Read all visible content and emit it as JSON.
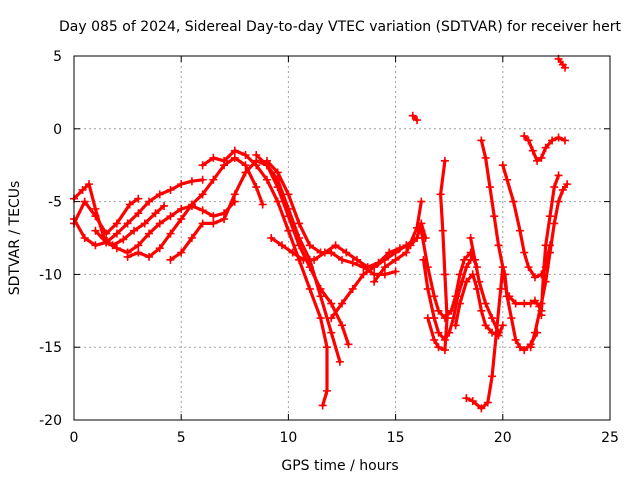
{
  "chart_data": {
    "type": "scatter",
    "title": "Day 085 of 2024, Sidereal Day-to-day VTEC variation (SDTVAR) for receiver hert",
    "xlabel": "GPS time / hours",
    "ylabel": "SDTVAR / TECUs",
    "xlim": [
      0,
      25
    ],
    "ylim": [
      -20,
      5
    ],
    "x_ticks": [
      "0",
      "5",
      "10",
      "15",
      "20",
      "25"
    ],
    "y_ticks": [
      "-20",
      "-15",
      "-10",
      "-5",
      "0",
      "5"
    ],
    "grid": true,
    "legend": "none",
    "marker": "plus",
    "series_color": "#ff0000",
    "series": [
      {
        "points": [
          [
            0,
            -6.5
          ],
          [
            0.5,
            -5.0
          ],
          [
            1.0,
            -6.0
          ],
          [
            1.5,
            -7.2
          ],
          [
            2.0,
            -6.5
          ],
          [
            2.6,
            -5.2
          ],
          [
            3.0,
            -4.8
          ]
        ]
      },
      {
        "points": [
          [
            0,
            -4.8
          ],
          [
            0.4,
            -4.2
          ],
          [
            0.7,
            -3.8
          ],
          [
            1.0,
            -5.5
          ],
          [
            1.4,
            -7.5
          ],
          [
            1.8,
            -8.0
          ],
          [
            2.3,
            -7.6
          ],
          [
            2.8,
            -7.0
          ],
          [
            3.3,
            -6.5
          ],
          [
            3.8,
            -5.8
          ],
          [
            4.2,
            -5.3
          ]
        ]
      },
      {
        "points": [
          [
            0,
            -6.2
          ],
          [
            0.5,
            -7.5
          ],
          [
            1.0,
            -8.0
          ],
          [
            1.5,
            -7.8
          ],
          [
            2.0,
            -7.2
          ],
          [
            2.5,
            -6.5
          ],
          [
            3.0,
            -5.8
          ],
          [
            3.5,
            -5.0
          ],
          [
            4.0,
            -4.5
          ],
          [
            4.5,
            -4.2
          ],
          [
            5.0,
            -3.8
          ],
          [
            5.5,
            -3.6
          ],
          [
            6.0,
            -3.5
          ]
        ]
      },
      {
        "points": [
          [
            1.0,
            -7.0
          ],
          [
            1.5,
            -7.8
          ],
          [
            2.0,
            -8.2
          ],
          [
            2.5,
            -8.5
          ],
          [
            3.0,
            -8.0
          ],
          [
            3.5,
            -7.2
          ],
          [
            4.0,
            -6.5
          ],
          [
            4.5,
            -6.0
          ],
          [
            5.0,
            -5.5
          ],
          [
            5.5,
            -5.3
          ],
          [
            6.0,
            -5.6
          ],
          [
            6.5,
            -6.0
          ],
          [
            7.0,
            -5.8
          ],
          [
            7.5,
            -5.0
          ]
        ]
      },
      {
        "points": [
          [
            2.5,
            -8.8
          ],
          [
            3.0,
            -8.5
          ],
          [
            3.5,
            -8.8
          ],
          [
            4.0,
            -8.2
          ],
          [
            4.5,
            -7.2
          ],
          [
            5.0,
            -6.2
          ],
          [
            5.5,
            -5.2
          ],
          [
            6.0,
            -4.5
          ],
          [
            6.5,
            -3.5
          ],
          [
            7.0,
            -2.5
          ],
          [
            7.5,
            -2.0
          ],
          [
            8.0,
            -2.5
          ],
          [
            8.5,
            -4.0
          ],
          [
            8.8,
            -5.2
          ]
        ]
      },
      {
        "points": [
          [
            4.5,
            -9.0
          ],
          [
            5.0,
            -8.5
          ],
          [
            5.5,
            -7.5
          ],
          [
            6.0,
            -6.5
          ],
          [
            6.5,
            -6.5
          ],
          [
            7.0,
            -6.2
          ],
          [
            7.5,
            -4.5
          ],
          [
            8.0,
            -3.0
          ],
          [
            8.5,
            -2.2
          ],
          [
            9.0,
            -2.5
          ],
          [
            9.5,
            -3.5
          ],
          [
            10.0,
            -5.5
          ],
          [
            10.5,
            -7.5
          ],
          [
            11.0,
            -9.0
          ],
          [
            11.5,
            -11.5
          ],
          [
            12.0,
            -14.0
          ],
          [
            12.4,
            -16.0
          ]
        ]
      },
      {
        "points": [
          [
            6.0,
            -2.5
          ],
          [
            6.5,
            -2.0
          ],
          [
            7.0,
            -2.2
          ],
          [
            7.5,
            -1.5
          ],
          [
            8.0,
            -1.8
          ],
          [
            8.5,
            -2.5
          ],
          [
            9.0,
            -3.5
          ],
          [
            9.5,
            -5.0
          ],
          [
            10.0,
            -7.0
          ],
          [
            10.5,
            -9.0
          ],
          [
            11.0,
            -11.0
          ],
          [
            11.5,
            -13.0
          ],
          [
            11.8,
            -15.0
          ],
          [
            11.8,
            -18.0
          ],
          [
            11.6,
            -19.0
          ]
        ]
      },
      {
        "points": [
          [
            8.5,
            -1.8
          ],
          [
            9.0,
            -2.5
          ],
          [
            9.5,
            -4.0
          ],
          [
            10.0,
            -6.0
          ],
          [
            10.5,
            -8.0
          ],
          [
            11.0,
            -9.5
          ],
          [
            11.5,
            -11.0
          ],
          [
            12.0,
            -12.0
          ],
          [
            12.5,
            -13.5
          ],
          [
            12.8,
            -14.8
          ]
        ]
      },
      {
        "points": [
          [
            9.0,
            -2.2
          ],
          [
            9.5,
            -3.0
          ],
          [
            10.0,
            -4.5
          ],
          [
            10.5,
            -6.5
          ],
          [
            11.0,
            -8.0
          ],
          [
            11.5,
            -8.5
          ],
          [
            12.0,
            -8.5
          ],
          [
            12.5,
            -9.0
          ],
          [
            13.0,
            -9.2
          ],
          [
            13.5,
            -9.5
          ],
          [
            14.0,
            -10.0
          ],
          [
            14.5,
            -10.0
          ],
          [
            15.0,
            -9.8
          ]
        ]
      },
      {
        "points": [
          [
            9.2,
            -7.5
          ],
          [
            9.7,
            -8.0
          ],
          [
            10.2,
            -8.5
          ],
          [
            10.7,
            -9.0
          ],
          [
            11.2,
            -9.0
          ],
          [
            11.7,
            -8.5
          ],
          [
            12.2,
            -8.0
          ],
          [
            12.7,
            -8.5
          ],
          [
            13.2,
            -9.0
          ],
          [
            13.7,
            -9.5
          ],
          [
            14.2,
            -9.2
          ],
          [
            14.7,
            -8.5
          ],
          [
            15.2,
            -8.2
          ],
          [
            15.7,
            -8.0
          ],
          [
            16.0,
            -7.5
          ]
        ]
      },
      {
        "points": [
          [
            12.0,
            -13.0
          ],
          [
            12.5,
            -12.0
          ],
          [
            13.0,
            -11.0
          ],
          [
            13.5,
            -10.0
          ],
          [
            14.0,
            -9.5
          ],
          [
            14.5,
            -9.0
          ],
          [
            15.0,
            -8.5
          ],
          [
            15.5,
            -8.0
          ],
          [
            16.0,
            -7.5
          ],
          [
            16.2,
            -6.5
          ],
          [
            16.4,
            -7.5
          ]
        ]
      },
      {
        "points": [
          [
            14.0,
            -10.5
          ],
          [
            14.5,
            -9.5
          ],
          [
            15.0,
            -9.0
          ],
          [
            15.5,
            -8.5
          ],
          [
            16.0,
            -6.8
          ],
          [
            16.2,
            -5.0
          ]
        ]
      },
      {
        "points": [
          [
            15.8,
            0.9
          ],
          [
            16.0,
            0.6
          ]
        ]
      },
      {
        "points": [
          [
            16.2,
            -7.0
          ],
          [
            16.5,
            -9.5
          ],
          [
            16.8,
            -11.5
          ],
          [
            17.0,
            -12.5
          ],
          [
            17.3,
            -13.0
          ],
          [
            17.6,
            -12.5
          ],
          [
            17.8,
            -11.5
          ],
          [
            18.0,
            -10.0
          ],
          [
            18.2,
            -9.0
          ],
          [
            18.5,
            -8.5
          ],
          [
            18.8,
            -9.5
          ]
        ]
      },
      {
        "points": [
          [
            16.3,
            -9.0
          ],
          [
            16.5,
            -11.0
          ],
          [
            16.8,
            -13.0
          ],
          [
            17.0,
            -14.0
          ],
          [
            17.3,
            -14.5
          ],
          [
            17.5,
            -14.0
          ],
          [
            17.7,
            -13.0
          ],
          [
            17.9,
            -11.5
          ],
          [
            18.1,
            -10.5
          ],
          [
            18.3,
            -9.5
          ],
          [
            18.5,
            -9.0
          ]
        ]
      },
      {
        "points": [
          [
            16.5,
            -13.0
          ],
          [
            16.8,
            -14.5
          ],
          [
            17.0,
            -15.0
          ],
          [
            17.3,
            -15.2
          ],
          [
            17.4,
            -13.0
          ],
          [
            17.3,
            -10.0
          ],
          [
            17.2,
            -7.0
          ],
          [
            17.1,
            -4.5
          ],
          [
            17.3,
            -2.2
          ]
        ]
      },
      {
        "points": [
          [
            17.8,
            -13.5
          ],
          [
            18.0,
            -12.0
          ],
          [
            18.3,
            -10.5
          ],
          [
            18.6,
            -10.0
          ],
          [
            18.8,
            -11.0
          ],
          [
            19.0,
            -12.5
          ],
          [
            19.2,
            -13.5
          ],
          [
            19.5,
            -14.0
          ],
          [
            19.8,
            -14.2
          ],
          [
            20.0,
            -13.5
          ]
        ]
      },
      {
        "points": [
          [
            18.3,
            -18.5
          ],
          [
            18.6,
            -18.7
          ],
          [
            19.0,
            -19.2
          ],
          [
            19.3,
            -18.8
          ],
          [
            19.5,
            -17.0
          ],
          [
            19.7,
            -14.0
          ],
          [
            19.9,
            -11.0
          ],
          [
            20.0,
            -9.5
          ],
          [
            20.1,
            -10.0
          ],
          [
            20.2,
            -11.5
          ]
        ]
      },
      {
        "points": [
          [
            19.0,
            -0.8
          ],
          [
            19.2,
            -2.0
          ],
          [
            19.4,
            -4.0
          ],
          [
            19.6,
            -6.0
          ],
          [
            19.8,
            -8.0
          ],
          [
            20.0,
            -9.5
          ],
          [
            20.2,
            -11.5
          ],
          [
            20.4,
            -13.0
          ],
          [
            20.6,
            -14.5
          ],
          [
            20.8,
            -15.0
          ],
          [
            21.0,
            -15.2
          ],
          [
            21.3,
            -14.8
          ],
          [
            21.6,
            -14.0
          ]
        ]
      },
      {
        "points": [
          [
            18.5,
            -7.5
          ],
          [
            18.7,
            -9.0
          ],
          [
            18.9,
            -10.5
          ],
          [
            19.2,
            -12.0
          ],
          [
            19.5,
            -13.0
          ],
          [
            19.8,
            -14.0
          ]
        ]
      },
      {
        "points": [
          [
            20.0,
            -2.5
          ],
          [
            20.2,
            -3.5
          ],
          [
            20.5,
            -5.0
          ],
          [
            20.8,
            -7.0
          ],
          [
            21.0,
            -8.5
          ],
          [
            21.2,
            -9.5
          ],
          [
            21.5,
            -10.2
          ],
          [
            21.8,
            -10.0
          ],
          [
            22.0,
            -9.5
          ],
          [
            22.2,
            -8.0
          ]
        ]
      },
      {
        "points": [
          [
            20.3,
            -11.5
          ],
          [
            20.6,
            -12.0
          ],
          [
            21.0,
            -12.0
          ],
          [
            21.3,
            -12.0
          ],
          [
            21.5,
            -11.8
          ],
          [
            21.7,
            -12.2
          ],
          [
            21.8,
            -12.8
          ]
        ]
      },
      {
        "points": [
          [
            21.3,
            -15.0
          ],
          [
            21.5,
            -14.0
          ],
          [
            21.8,
            -12.0
          ],
          [
            22.0,
            -10.5
          ],
          [
            22.2,
            -8.5
          ],
          [
            22.4,
            -6.5
          ],
          [
            22.6,
            -5.0
          ],
          [
            22.8,
            -4.2
          ],
          [
            23.0,
            -3.8
          ]
        ]
      },
      {
        "points": [
          [
            21.8,
            -12.5
          ],
          [
            21.9,
            -10.0
          ],
          [
            22.0,
            -8.0
          ],
          [
            22.2,
            -6.0
          ],
          [
            22.4,
            -4.0
          ],
          [
            22.6,
            -3.2
          ]
        ]
      },
      {
        "points": [
          [
            21.0,
            -0.5
          ],
          [
            21.2,
            -0.8
          ],
          [
            21.4,
            -1.5
          ],
          [
            21.6,
            -2.2
          ],
          [
            21.8,
            -2.0
          ],
          [
            22.0,
            -1.3
          ],
          [
            22.3,
            -0.8
          ],
          [
            22.6,
            -0.6
          ],
          [
            22.9,
            -0.8
          ]
        ]
      },
      {
        "points": [
          [
            22.6,
            4.8
          ],
          [
            22.8,
            4.4
          ],
          [
            22.9,
            4.2
          ]
        ]
      }
    ]
  }
}
